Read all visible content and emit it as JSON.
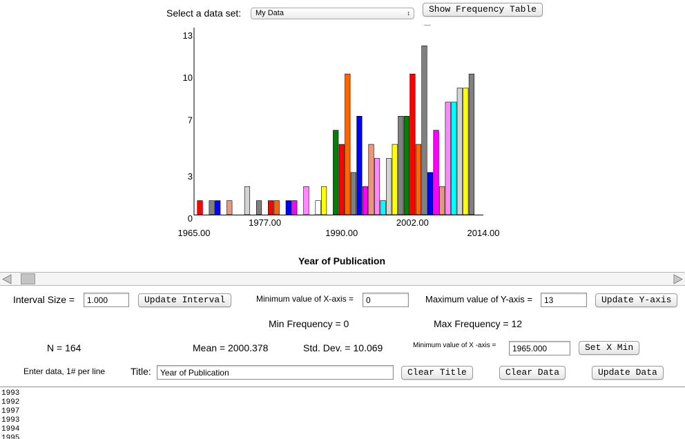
{
  "header": {
    "select_label": "Select a data set:",
    "dataset_selected": "My Data",
    "freq_table_button": "Show Frequency Table",
    "dash_text": "—"
  },
  "chart_data": {
    "type": "bar",
    "title": "Year of Publication",
    "xlabel": "Year of Publication",
    "ylabel": "",
    "xlim": [
      1965,
      2014
    ],
    "ylim": [
      0,
      13
    ],
    "y_ticks": [
      "0",
      "3",
      "7",
      "10",
      "13"
    ],
    "x_ticks_upper": [
      "1977.00",
      "2002.00"
    ],
    "x_ticks_lower": [
      "1965.00",
      "1990.00",
      "2014.00"
    ],
    "bars": [
      {
        "x": 1966,
        "value": 1,
        "color": "#ff0000"
      },
      {
        "x": 1968,
        "value": 1,
        "color": "#808080"
      },
      {
        "x": 1969,
        "value": 1,
        "color": "#0000ff"
      },
      {
        "x": 1971,
        "value": 1,
        "color": "#e9967a"
      },
      {
        "x": 1974,
        "value": 2,
        "color": "#d3d3d3"
      },
      {
        "x": 1976,
        "value": 1,
        "color": "#808080"
      },
      {
        "x": 1978,
        "value": 1,
        "color": "#ff0000"
      },
      {
        "x": 1979,
        "value": 1,
        "color": "#ff6600"
      },
      {
        "x": 1981,
        "value": 1,
        "color": "#0000ff"
      },
      {
        "x": 1982,
        "value": 1,
        "color": "#ff00ff"
      },
      {
        "x": 1984,
        "value": 2,
        "color": "#ff88ff"
      },
      {
        "x": 1986,
        "value": 1,
        "color": "#ffffff"
      },
      {
        "x": 1987,
        "value": 2,
        "color": "#ffff00"
      },
      {
        "x": 1989,
        "value": 6,
        "color": "#008000"
      },
      {
        "x": 1990,
        "value": 5,
        "color": "#ff0000"
      },
      {
        "x": 1991,
        "value": 10,
        "color": "#ff6600"
      },
      {
        "x": 1992,
        "value": 3,
        "color": "#808080"
      },
      {
        "x": 1993,
        "value": 7,
        "color": "#0000ff"
      },
      {
        "x": 1994,
        "value": 2,
        "color": "#ff00ff"
      },
      {
        "x": 1995,
        "value": 5,
        "color": "#e9967a"
      },
      {
        "x": 1996,
        "value": 4,
        "color": "#ff88ff"
      },
      {
        "x": 1997,
        "value": 1,
        "color": "#00ffff"
      },
      {
        "x": 1998,
        "value": 4,
        "color": "#d3d3d3"
      },
      {
        "x": 1999,
        "value": 5,
        "color": "#ffff00"
      },
      {
        "x": 2000,
        "value": 7,
        "color": "#808080"
      },
      {
        "x": 2001,
        "value": 7,
        "color": "#008000"
      },
      {
        "x": 2002,
        "value": 10,
        "color": "#ff0000"
      },
      {
        "x": 2003,
        "value": 5,
        "color": "#ff6600"
      },
      {
        "x": 2004,
        "value": 12,
        "color": "#808080"
      },
      {
        "x": 2005,
        "value": 3,
        "color": "#0000ff"
      },
      {
        "x": 2006,
        "value": 6,
        "color": "#ff00ff"
      },
      {
        "x": 2007,
        "value": 2,
        "color": "#e9967a"
      },
      {
        "x": 2008,
        "value": 8,
        "color": "#ff88ff"
      },
      {
        "x": 2009,
        "value": 8,
        "color": "#00ffff"
      },
      {
        "x": 2010,
        "value": 9,
        "color": "#d3d3d3"
      },
      {
        "x": 2011,
        "value": 9,
        "color": "#ffff00"
      },
      {
        "x": 2012,
        "value": 10,
        "color": "#808080"
      }
    ]
  },
  "controls": {
    "interval_label": "Interval Size =",
    "interval_value": "1.000",
    "update_interval_button": "Update Interval",
    "min_x_label": "Minimum value of X-axis =",
    "min_x_value": "0",
    "max_y_label": "Maximum value of Y-axis =",
    "max_y_value": "13",
    "update_y_button": "Update Y-axis",
    "min_freq": "Min Frequency = 0",
    "max_freq": "Max Frequency = 12",
    "n_text": "N = 164",
    "mean_text": "Mean = 2000.378",
    "sd_text": "Std. Dev. = 10.069",
    "min_x2_label": "Minimum value of X -axis =",
    "min_x2_value": "1965.000",
    "set_xmin_button": "Set X Min",
    "enter_data_label": "Enter data, 1# per line",
    "title_label": "Title:",
    "title_value": "Year of Publication",
    "clear_title_button": "Clear Title",
    "clear_data_button": "Clear Data",
    "update_data_button": "Update Data"
  },
  "data_text": "1993\n1992\n1997\n1993\n1994\n1995"
}
